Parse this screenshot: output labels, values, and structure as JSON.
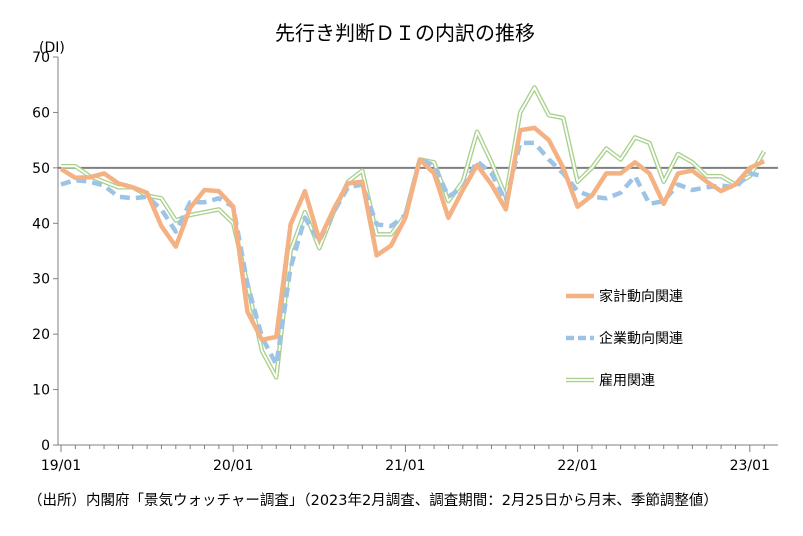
{
  "chart_data": {
    "type": "line",
    "title": "先行き判断ＤＩの内訳の推移",
    "ylabel": "(DI)",
    "xlabel": "",
    "ylim": [
      0,
      70
    ],
    "yticks": [
      0,
      10,
      20,
      30,
      40,
      50,
      60,
      70
    ],
    "xtick_labels": [
      "19/01",
      "20/01",
      "21/01",
      "22/01",
      "23/01"
    ],
    "reference_line": 50,
    "grid": false,
    "legend_position": "right-middle",
    "series": [
      {
        "name": "家計動向関連",
        "color": "#f4b183",
        "style": "solid-thick",
        "values": [
          49.8,
          48.2,
          48.3,
          49.0,
          47.2,
          46.5,
          45.5,
          39.5,
          35.8,
          42.8,
          46.0,
          45.8,
          43.0,
          24.0,
          19.0,
          19.5,
          39.8,
          45.8,
          37.0,
          42.5,
          47.2,
          47.5,
          34.2,
          36.0,
          41.0,
          51.5,
          49.0,
          41.0,
          46.0,
          50.5,
          47.0,
          42.5,
          56.8,
          57.2,
          55.0,
          50.0,
          43.0,
          45.0,
          49.0,
          49.0,
          51.0,
          49.0,
          43.5,
          49.0,
          49.5,
          47.5,
          45.8,
          47.0,
          50.0,
          51.2
        ]
      },
      {
        "name": "企業動向関連",
        "color": "#9dc3e6",
        "style": "dashed-thick",
        "values": [
          47.0,
          47.8,
          47.5,
          46.8,
          44.8,
          44.5,
          44.8,
          42.5,
          38.5,
          43.8,
          43.8,
          44.5,
          43.0,
          29.0,
          19.5,
          14.5,
          32.0,
          41.0,
          36.8,
          42.0,
          46.5,
          47.0,
          39.8,
          39.5,
          41.5,
          51.5,
          50.5,
          44.8,
          46.5,
          51.2,
          49.0,
          44.0,
          54.5,
          54.5,
          51.5,
          49.0,
          45.8,
          44.8,
          44.5,
          45.5,
          48.5,
          43.5,
          44.0,
          47.0,
          46.0,
          46.5,
          46.8,
          46.5,
          49.0,
          48.5
        ]
      },
      {
        "name": "雇用関連",
        "color": "#a9d18e",
        "style": "double",
        "values": [
          50.3,
          50.3,
          48.5,
          47.5,
          46.5,
          46.5,
          45.0,
          44.5,
          40.5,
          41.5,
          42.0,
          42.5,
          40.0,
          29.0,
          17.0,
          12.2,
          35.0,
          42.0,
          35.5,
          42.0,
          47.5,
          49.5,
          38.0,
          38.0,
          41.5,
          51.5,
          51.0,
          44.0,
          47.5,
          56.5,
          51.0,
          44.8,
          60.0,
          64.5,
          59.5,
          59.0,
          47.5,
          50.0,
          53.5,
          51.5,
          55.5,
          54.5,
          47.5,
          52.5,
          51.0,
          48.5,
          48.5,
          47.0,
          48.5,
          53.0
        ]
      }
    ]
  },
  "note": "（出所）内閣府「景気ウォッチャー調査」（2023年2月調査、調査期間：2月25日から月末、季節調整値）"
}
